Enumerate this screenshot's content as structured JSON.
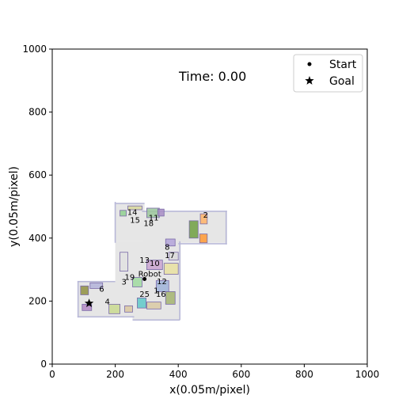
{
  "plot": {
    "time_label": "Time: 0.00",
    "xlabel": "x(0.05m/pixel)",
    "ylabel": "y(0.05m/pixel)",
    "xlim": [
      0,
      1000
    ],
    "ylim": [
      0,
      1000
    ],
    "xticks": [
      "0",
      "200",
      "400",
      "600",
      "800",
      "1000"
    ],
    "yticks": [
      "0",
      "200",
      "400",
      "600",
      "800",
      "1000"
    ]
  },
  "legend": {
    "position": "top-right",
    "items": [
      {
        "label": "Start",
        "marker": "dot"
      },
      {
        "label": "Goal",
        "marker": "star"
      }
    ]
  },
  "markers": {
    "robot": {
      "label": "Robot",
      "x": 293,
      "y": 270
    },
    "goal": {
      "x": 117,
      "y": 193
    },
    "start_color": "#000000"
  },
  "object_labels": [
    {
      "text": "1",
      "x": 330,
      "y": 225
    },
    {
      "text": "2",
      "x": 487,
      "y": 465
    },
    {
      "text": "3",
      "x": 228,
      "y": 252
    },
    {
      "text": "4",
      "x": 175,
      "y": 190
    },
    {
      "text": "6",
      "x": 157,
      "y": 230
    },
    {
      "text": "8",
      "x": 365,
      "y": 363
    },
    {
      "text": "10",
      "x": 325,
      "y": 312
    },
    {
      "text": "11",
      "x": 322,
      "y": 456
    },
    {
      "text": "12",
      "x": 348,
      "y": 254
    },
    {
      "text": "13",
      "x": 293,
      "y": 321
    },
    {
      "text": "14",
      "x": 254,
      "y": 474
    },
    {
      "text": "15",
      "x": 263,
      "y": 448
    },
    {
      "text": "16",
      "x": 345,
      "y": 213
    },
    {
      "text": "17",
      "x": 373,
      "y": 337
    },
    {
      "text": "18",
      "x": 306,
      "y": 438
    },
    {
      "text": "19",
      "x": 246,
      "y": 268
    },
    {
      "text": "25",
      "x": 293,
      "y": 213
    }
  ],
  "map_regions": [
    {
      "x": 198,
      "y": 390,
      "w": 95,
      "h": 120,
      "color": "#e6e6e6"
    },
    {
      "x": 290,
      "y": 385,
      "w": 265,
      "h": 100,
      "color": "#e6e6e6"
    },
    {
      "x": 200,
      "y": 260,
      "w": 60,
      "h": 130,
      "color": "#e6e6e6"
    },
    {
      "x": 258,
      "y": 205,
      "w": 150,
      "h": 185,
      "color": "#e6e6e6"
    },
    {
      "x": 82,
      "y": 150,
      "w": 180,
      "h": 110,
      "color": "#e6e6e6"
    },
    {
      "x": 255,
      "y": 140,
      "w": 150,
      "h": 80,
      "color": "#e6e6e6"
    }
  ],
  "walls": [
    {
      "x": 198,
      "y": 385,
      "w": 4,
      "h": 130,
      "color": "#b8b8d8"
    },
    {
      "x": 198,
      "y": 508,
      "w": 95,
      "h": 4,
      "color": "#b8b8d8"
    },
    {
      "x": 285,
      "y": 483,
      "w": 270,
      "h": 4,
      "color": "#b8b8d8"
    },
    {
      "x": 550,
      "y": 380,
      "w": 4,
      "h": 107,
      "color": "#b8b8d8"
    },
    {
      "x": 400,
      "y": 380,
      "w": 155,
      "h": 4,
      "color": "#b8b8d8"
    },
    {
      "x": 80,
      "y": 148,
      "w": 4,
      "h": 115,
      "color": "#b8b8d8"
    },
    {
      "x": 80,
      "y": 260,
      "w": 120,
      "h": 4,
      "color": "#b8b8d8"
    },
    {
      "x": 80,
      "y": 148,
      "w": 180,
      "h": 4,
      "color": "#b8b8d8"
    },
    {
      "x": 403,
      "y": 140,
      "w": 4,
      "h": 250,
      "color": "#b8b8d8"
    },
    {
      "x": 255,
      "y": 138,
      "w": 150,
      "h": 4,
      "color": "#b8b8d8"
    }
  ],
  "furniture": [
    {
      "x": 215,
      "y": 470,
      "w": 20,
      "h": 18,
      "color": "#8fcf8f"
    },
    {
      "x": 240,
      "y": 490,
      "w": 45,
      "h": 12,
      "color": "#d7d79b"
    },
    {
      "x": 300,
      "y": 465,
      "w": 40,
      "h": 30,
      "color": "#9bc79b"
    },
    {
      "x": 335,
      "y": 470,
      "w": 20,
      "h": 22,
      "color": "#a78cc4"
    },
    {
      "x": 435,
      "y": 400,
      "w": 28,
      "h": 55,
      "color": "#6f9f3f"
    },
    {
      "x": 470,
      "y": 445,
      "w": 22,
      "h": 32,
      "color": "#ffb366"
    },
    {
      "x": 468,
      "y": 385,
      "w": 24,
      "h": 28,
      "color": "#ff9933"
    },
    {
      "x": 360,
      "y": 375,
      "w": 30,
      "h": 22,
      "color": "#b3a3d9"
    },
    {
      "x": 370,
      "y": 330,
      "w": 30,
      "h": 25,
      "color": "#d9d9d9"
    },
    {
      "x": 300,
      "y": 300,
      "w": 50,
      "h": 30,
      "color": "#c9a3d0"
    },
    {
      "x": 355,
      "y": 285,
      "w": 45,
      "h": 35,
      "color": "#e8e0a0"
    },
    {
      "x": 330,
      "y": 230,
      "w": 40,
      "h": 35,
      "color": "#9fb3d9"
    },
    {
      "x": 360,
      "y": 190,
      "w": 30,
      "h": 40,
      "color": "#a3b36f"
    },
    {
      "x": 270,
      "y": 178,
      "w": 28,
      "h": 32,
      "color": "#5fc8c8"
    },
    {
      "x": 300,
      "y": 175,
      "w": 45,
      "h": 22,
      "color": "#d9c9a3"
    },
    {
      "x": 180,
      "y": 160,
      "w": 35,
      "h": 30,
      "color": "#c9d98f"
    },
    {
      "x": 230,
      "y": 165,
      "w": 25,
      "h": 20,
      "color": "#d9c7a0"
    },
    {
      "x": 90,
      "y": 220,
      "w": 25,
      "h": 28,
      "color": "#8f8f3f"
    },
    {
      "x": 120,
      "y": 240,
      "w": 40,
      "h": 18,
      "color": "#b3b3d9"
    },
    {
      "x": 95,
      "y": 170,
      "w": 30,
      "h": 20,
      "color": "#b387c4"
    },
    {
      "x": 255,
      "y": 245,
      "w": 30,
      "h": 30,
      "color": "#9fd99f"
    },
    {
      "x": 215,
      "y": 295,
      "w": 25,
      "h": 60,
      "color": "#e0e0e0"
    }
  ],
  "colors": {
    "axis": "#000000",
    "background": "#ffffff"
  }
}
